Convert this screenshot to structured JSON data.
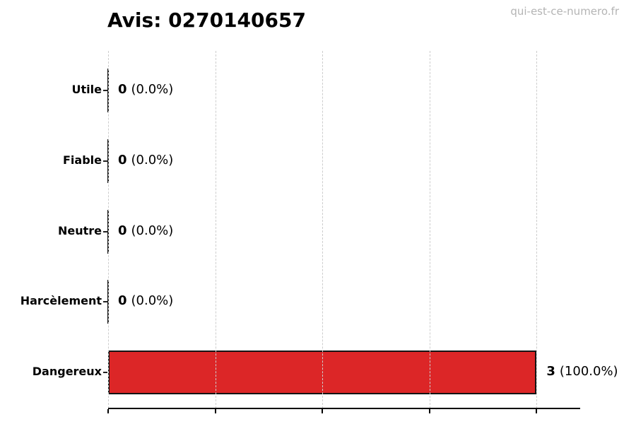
{
  "watermark": "qui-est-ce-numero.fr",
  "chart_data": {
    "type": "bar",
    "orientation": "horizontal",
    "title": "Avis: 0270140657",
    "categories": [
      "Utile",
      "Fiable",
      "Neutre",
      "Harcèlement",
      "Dangereux"
    ],
    "values": [
      0,
      0,
      0,
      0,
      3
    ],
    "value_labels": [
      {
        "count": "0",
        "percent": "(0.0%)"
      },
      {
        "count": "0",
        "percent": "(0.0%)"
      },
      {
        "count": "0",
        "percent": "(0.0%)"
      },
      {
        "count": "0",
        "percent": "(0.0%)"
      },
      {
        "count": "3",
        "percent": "(100.0%)"
      }
    ],
    "xlim": [
      0,
      3.3
    ],
    "xticks": [
      0,
      0.75,
      1.5,
      2.25,
      3
    ],
    "grid": {
      "axis": "x",
      "style": "dashed",
      "color": "#cdcdcd"
    },
    "legend": "none",
    "bar_color": "#dc2627",
    "bar_edge_color": "#141414",
    "zero_bar_color": "#111111",
    "title_color": "#000000",
    "watermark_color": "#b4b4b4"
  }
}
